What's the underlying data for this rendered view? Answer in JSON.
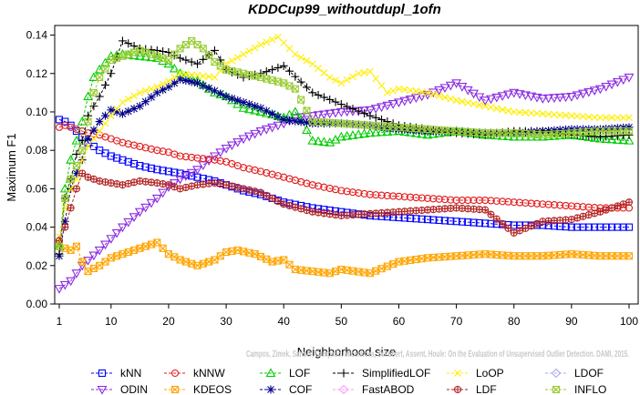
{
  "chart_data": {
    "type": "line",
    "title": "KDDCup99_withoutdupl_1ofn",
    "xlabel": "Neighborhood size",
    "ylabel": "Maximum F1",
    "xlim": [
      1,
      100
    ],
    "ylim": [
      0,
      0.145
    ],
    "xticks": [
      "1",
      "10",
      "20",
      "30",
      "40",
      "50",
      "60",
      "70",
      "80",
      "90",
      "100"
    ],
    "yticks": [
      "0.00",
      "0.02",
      "0.04",
      "0.06",
      "0.08",
      "0.10",
      "0.12",
      "0.14"
    ],
    "grid": false,
    "legend_position": "bottom",
    "watermark": "Campos, Zimek, Sander, Campello, Micenkova, Schubert, Assent, Houle: On the Evaluation of Unsupervised Outlier Detection. DAMI, 2015.",
    "series": [
      {
        "name": "kNN",
        "color": "#0000ff",
        "marker": "square",
        "x": [
          1,
          2,
          3,
          4,
          5,
          6,
          8,
          10,
          12,
          15,
          18,
          20,
          22,
          25,
          28,
          30,
          33,
          36,
          40,
          45,
          50,
          55,
          60,
          65,
          70,
          75,
          80,
          85,
          90,
          95,
          100
        ],
        "y": [
          0.096,
          0.095,
          0.093,
          0.09,
          0.087,
          0.084,
          0.08,
          0.077,
          0.075,
          0.072,
          0.07,
          0.069,
          0.068,
          0.066,
          0.064,
          0.062,
          0.059,
          0.057,
          0.053,
          0.05,
          0.048,
          0.046,
          0.045,
          0.044,
          0.043,
          0.042,
          0.041,
          0.041,
          0.04,
          0.04,
          0.04
        ]
      },
      {
        "name": "ODIN",
        "color": "#8a2be2",
        "marker": "triangle-down",
        "x": [
          1,
          3,
          5,
          8,
          10,
          12,
          15,
          18,
          20,
          22,
          25,
          28,
          30,
          33,
          36,
          40,
          42,
          45,
          50,
          55,
          60,
          65,
          70,
          75,
          80,
          85,
          90,
          95,
          100
        ],
        "y": [
          0.008,
          0.012,
          0.02,
          0.028,
          0.034,
          0.04,
          0.048,
          0.055,
          0.061,
          0.065,
          0.07,
          0.077,
          0.081,
          0.086,
          0.09,
          0.094,
          0.097,
          0.098,
          0.1,
          0.101,
          0.105,
          0.109,
          0.115,
          0.106,
          0.11,
          0.107,
          0.108,
          0.112,
          0.118
        ]
      },
      {
        "name": "kNNW",
        "color": "#e41a1c",
        "marker": "circle",
        "x": [
          1,
          2,
          3,
          4,
          5,
          6,
          8,
          10,
          12,
          15,
          18,
          20,
          22,
          25,
          28,
          30,
          33,
          36,
          40,
          45,
          50,
          55,
          60,
          65,
          70,
          75,
          80,
          85,
          90,
          95,
          100
        ],
        "y": [
          0.092,
          0.093,
          0.092,
          0.091,
          0.09,
          0.089,
          0.088,
          0.086,
          0.084,
          0.082,
          0.08,
          0.079,
          0.077,
          0.076,
          0.075,
          0.074,
          0.071,
          0.069,
          0.066,
          0.062,
          0.059,
          0.057,
          0.056,
          0.055,
          0.054,
          0.054,
          0.053,
          0.052,
          0.051,
          0.05,
          0.05
        ]
      },
      {
        "name": "KDEOS",
        "color": "#ffa500",
        "marker": "square-x",
        "x": [
          1,
          2,
          3,
          4,
          5,
          6,
          8,
          10,
          12,
          15,
          18,
          20,
          22,
          25,
          28,
          30,
          32,
          35,
          38,
          40,
          42,
          45,
          48,
          50,
          55,
          60,
          65,
          70,
          75,
          80,
          85,
          90,
          95,
          100
        ],
        "y": [
          0.031,
          0.029,
          0.028,
          0.03,
          0.022,
          0.017,
          0.02,
          0.024,
          0.026,
          0.029,
          0.032,
          0.026,
          0.023,
          0.02,
          0.023,
          0.027,
          0.028,
          0.026,
          0.022,
          0.023,
          0.018,
          0.017,
          0.016,
          0.018,
          0.016,
          0.022,
          0.024,
          0.025,
          0.026,
          0.025,
          0.025,
          0.026,
          0.025,
          0.025
        ]
      },
      {
        "name": "LOF",
        "color": "#00cc00",
        "marker": "triangle",
        "x": [
          1,
          2,
          3,
          4,
          5,
          6,
          7,
          8,
          10,
          12,
          15,
          18,
          20,
          22,
          25,
          28,
          30,
          33,
          36,
          40,
          42,
          43,
          45,
          48,
          50,
          55,
          60,
          65,
          70,
          75,
          80,
          85,
          90,
          95,
          100
        ],
        "y": [
          0.03,
          0.06,
          0.075,
          0.085,
          0.095,
          0.108,
          0.118,
          0.122,
          0.129,
          0.13,
          0.129,
          0.128,
          0.125,
          0.12,
          0.116,
          0.11,
          0.108,
          0.102,
          0.1,
          0.097,
          0.1,
          0.096,
          0.085,
          0.084,
          0.087,
          0.089,
          0.09,
          0.088,
          0.09,
          0.088,
          0.087,
          0.087,
          0.088,
          0.086,
          0.085
        ]
      },
      {
        "name": "COF",
        "color": "#00008b",
        "marker": "asterisk",
        "x": [
          1,
          2,
          3,
          4,
          5,
          6,
          8,
          10,
          12,
          15,
          18,
          20,
          22,
          25,
          28,
          30,
          33,
          36,
          40,
          45,
          50,
          55,
          60,
          65,
          70,
          75,
          80,
          85,
          90,
          95,
          100
        ],
        "y": [
          0.025,
          0.043,
          0.06,
          0.068,
          0.075,
          0.086,
          0.095,
          0.101,
          0.099,
          0.103,
          0.11,
          0.113,
          0.117,
          0.115,
          0.111,
          0.108,
          0.105,
          0.102,
          0.096,
          0.094,
          0.094,
          0.093,
          0.091,
          0.09,
          0.09,
          0.089,
          0.089,
          0.09,
          0.091,
          0.091,
          0.092
        ]
      },
      {
        "name": "SimplifiedLOF",
        "color": "#000000",
        "marker": "plus",
        "x": [
          1,
          2,
          3,
          4,
          5,
          6,
          8,
          10,
          12,
          15,
          18,
          20,
          22,
          25,
          28,
          30,
          33,
          36,
          40,
          45,
          50,
          55,
          60,
          65,
          70,
          75,
          80,
          85,
          90,
          95,
          100
        ],
        "y": [
          0.026,
          0.055,
          0.065,
          0.078,
          0.085,
          0.098,
          0.108,
          0.12,
          0.137,
          0.133,
          0.132,
          0.131,
          0.128,
          0.125,
          0.132,
          0.122,
          0.118,
          0.12,
          0.124,
          0.11,
          0.104,
          0.098,
          0.093,
          0.091,
          0.089,
          0.088,
          0.09,
          0.09,
          0.088,
          0.087,
          0.088
        ]
      },
      {
        "name": "FastABOD",
        "color": "#ff99ff",
        "marker": "diamond",
        "x": [],
        "y": []
      },
      {
        "name": "LoOP",
        "color": "#ffee00",
        "marker": "x",
        "x": [
          1,
          2,
          3,
          4,
          5,
          6,
          8,
          10,
          12,
          15,
          18,
          20,
          22,
          25,
          28,
          30,
          33,
          36,
          39,
          42,
          45,
          48,
          50,
          53,
          55,
          58,
          60,
          65,
          70,
          75,
          80,
          85,
          90,
          95,
          100
        ],
        "y": [
          0.035,
          0.05,
          0.06,
          0.065,
          0.075,
          0.082,
          0.09,
          0.098,
          0.105,
          0.11,
          0.113,
          0.116,
          0.12,
          0.119,
          0.118,
          0.125,
          0.13,
          0.135,
          0.139,
          0.13,
          0.125,
          0.118,
          0.115,
          0.12,
          0.121,
          0.11,
          0.112,
          0.11,
          0.106,
          0.103,
          0.1,
          0.099,
          0.098,
          0.097,
          0.097
        ]
      },
      {
        "name": "LDF",
        "color": "#b22222",
        "marker": "circle-plus",
        "x": [
          1,
          2,
          3,
          4,
          5,
          6,
          8,
          10,
          12,
          15,
          18,
          20,
          22,
          25,
          28,
          30,
          33,
          36,
          40,
          45,
          50,
          55,
          60,
          65,
          70,
          75,
          80,
          85,
          90,
          95,
          100
        ],
        "y": [
          0.033,
          0.04,
          0.05,
          0.06,
          0.068,
          0.066,
          0.064,
          0.063,
          0.062,
          0.064,
          0.063,
          0.062,
          0.06,
          0.062,
          0.063,
          0.062,
          0.06,
          0.058,
          0.052,
          0.048,
          0.046,
          0.047,
          0.048,
          0.049,
          0.05,
          0.049,
          0.037,
          0.043,
          0.044,
          0.048,
          0.053
        ]
      },
      {
        "name": "LDOF",
        "color": "#aaaaee",
        "marker": "diamond",
        "x": [],
        "y": []
      },
      {
        "name": "INFLO",
        "color": "#99cc33",
        "marker": "square-x",
        "x": [
          1,
          2,
          3,
          4,
          5,
          6,
          7,
          8,
          10,
          12,
          15,
          18,
          20,
          22,
          24,
          26,
          28,
          30,
          33,
          36,
          40,
          42,
          45,
          50,
          55,
          60,
          65,
          70,
          75,
          80,
          85,
          90,
          95,
          100
        ],
        "y": [
          0.03,
          0.055,
          0.065,
          0.072,
          0.08,
          0.095,
          0.11,
          0.118,
          0.127,
          0.129,
          0.132,
          0.129,
          0.127,
          0.133,
          0.137,
          0.133,
          0.126,
          0.122,
          0.12,
          0.118,
          0.115,
          0.112,
          0.095,
          0.094,
          0.093,
          0.092,
          0.091,
          0.09,
          0.089,
          0.089,
          0.088,
          0.089,
          0.09,
          0.09
        ]
      }
    ]
  }
}
